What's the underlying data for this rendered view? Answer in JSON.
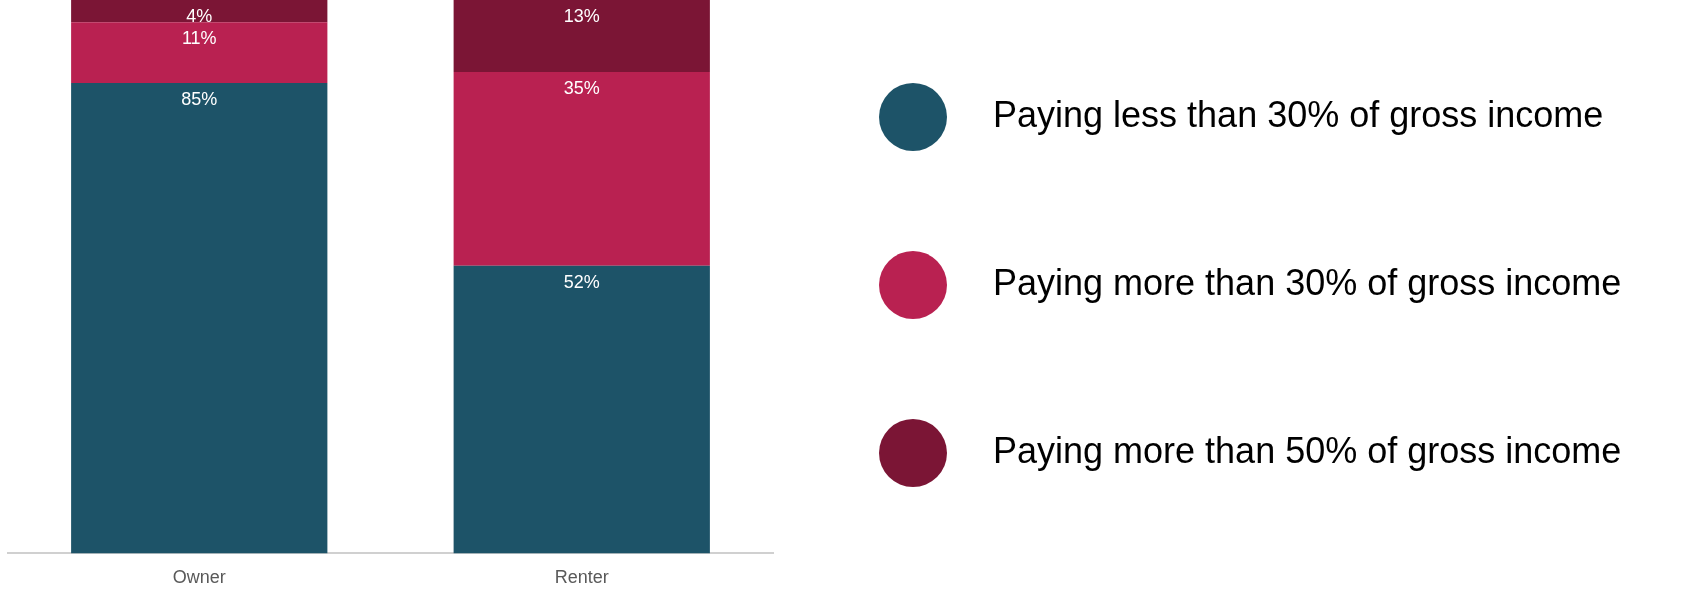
{
  "chart_data": {
    "type": "bar",
    "stacked": true,
    "categories": [
      "Owner",
      "Renter"
    ],
    "ylim": [
      0,
      100
    ],
    "tick_labels": "x",
    "grid": false,
    "legend": "right",
    "series": [
      {
        "name": "Paying less than 30% of gross income",
        "color": "#1d5368",
        "values": [
          85,
          52
        ],
        "value_labels": [
          "85%",
          "52%"
        ]
      },
      {
        "name": "Paying more than 30% of gross income",
        "color": "#b92151",
        "values": [
          11,
          35
        ],
        "value_labels": [
          "11%",
          "35%"
        ]
      },
      {
        "name": "Paying more than 50% of gross income",
        "color": "#7b1535",
        "values": [
          4,
          13
        ],
        "value_labels": [
          "4%",
          "13%"
        ]
      }
    ]
  }
}
